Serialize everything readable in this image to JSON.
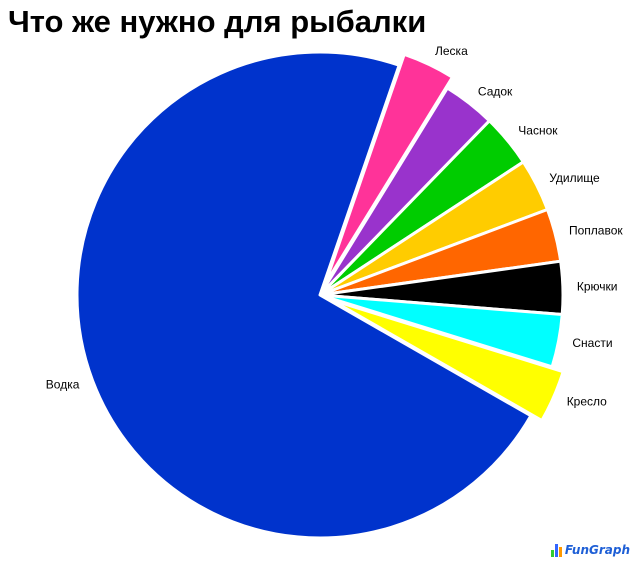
{
  "title": "Что же нужно для рыбалки",
  "chart_data": {
    "type": "pie",
    "title": "Что же нужно для рыбалки",
    "start_angle_deg": 71,
    "direction": "clockwise",
    "slices": [
      {
        "label": "Леска",
        "value": 3.5,
        "color": "#FF3399",
        "exploded": true
      },
      {
        "label": "Садок",
        "value": 3.5,
        "color": "#9933CC",
        "exploded": false
      },
      {
        "label": "Часнок",
        "value": 3.5,
        "color": "#00CC00",
        "exploded": false
      },
      {
        "label": "Удилище",
        "value": 3.5,
        "color": "#FFCC00",
        "exploded": false
      },
      {
        "label": "Поплавок",
        "value": 3.5,
        "color": "#FF6600",
        "exploded": false
      },
      {
        "label": "Крючки",
        "value": 3.5,
        "color": "#000000",
        "exploded": false
      },
      {
        "label": "Снасти",
        "value": 3.5,
        "color": "#00FFFF",
        "exploded": false
      },
      {
        "label": "Кресло",
        "value": 3.5,
        "color": "#FFFF00",
        "exploded": true
      },
      {
        "label": "Водка",
        "value": 72.0,
        "color": "#0033CC",
        "exploded": false
      }
    ]
  },
  "logo": {
    "text": "FunGraph",
    "bar_colors": [
      "#33CC33",
      "#3366FF",
      "#FF9900"
    ],
    "text_color": "#1E5FD6"
  }
}
